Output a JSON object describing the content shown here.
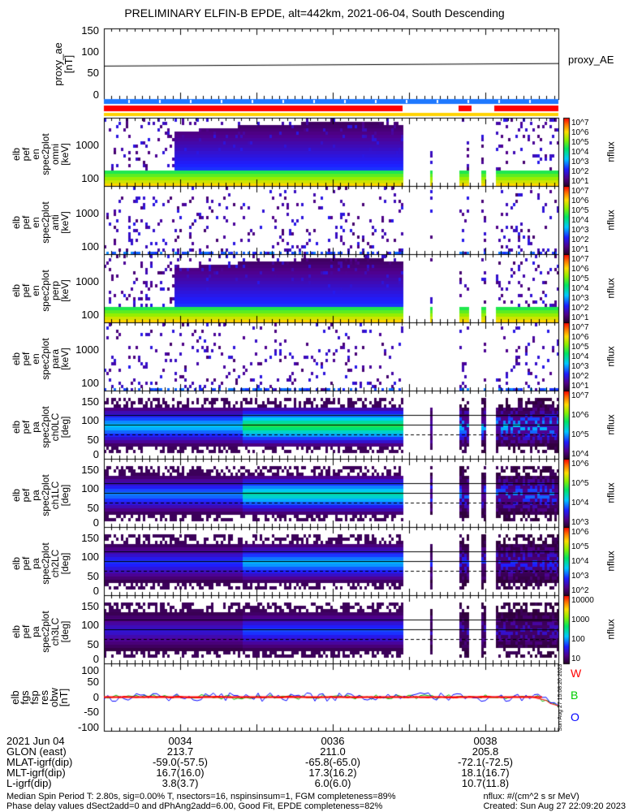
{
  "title": "PRELIMINARY ELFIN-B EPDE, alt=442km, 2021-06-04, South Descending",
  "colors": {
    "red_bar": "#ff0000",
    "blue_bar": "#1e78ff",
    "yellow_bar": "#ffd200",
    "W": "#ff0000",
    "B": "#00dd00",
    "O": "#0000ff"
  },
  "chart_data": [
    {
      "type": "line",
      "name": "proxy_ae",
      "ylabel": "proxy_ae [nT]",
      "yticks": [
        "150",
        "100",
        "50",
        "0"
      ],
      "ylim": [
        -10,
        155
      ],
      "x": [
        "00:33",
        "00:39"
      ],
      "values": [
        67,
        73
      ],
      "legend": "proxy_AE"
    },
    {
      "type": "heatmap",
      "ylabel": [
        "elb",
        "pef",
        "en",
        "spec2plot",
        "omni",
        "[keV]"
      ],
      "yticks": [
        "1000",
        "100"
      ],
      "yscale": "log",
      "ylim": [
        60,
        7000
      ],
      "zlabel": "nflux",
      "zticks": [
        "10^7",
        "10^6",
        "10^5",
        "10^4",
        "10^3",
        "10^2",
        "10^1"
      ]
    },
    {
      "type": "heatmap",
      "ylabel": [
        "elb",
        "pef",
        "en",
        "spec2plot",
        "anti",
        "[keV]"
      ],
      "yticks": [
        "1000",
        "100"
      ],
      "yscale": "log",
      "ylim": [
        60,
        7000
      ],
      "zlabel": "nflux",
      "zticks": [
        "10^7",
        "10^6",
        "10^5",
        "10^4",
        "10^3",
        "10^2",
        "10^1"
      ]
    },
    {
      "type": "heatmap",
      "ylabel": [
        "elb",
        "pef",
        "en",
        "spec2plot",
        "perp",
        "[keV]"
      ],
      "yticks": [
        "1000",
        "100"
      ],
      "yscale": "log",
      "ylim": [
        60,
        7000
      ],
      "zlabel": "nflux",
      "zticks": [
        "10^7",
        "10^6",
        "10^5",
        "10^4",
        "10^3",
        "10^2",
        "10^1"
      ]
    },
    {
      "type": "heatmap",
      "ylabel": [
        "elb",
        "pef",
        "en",
        "spec2plot",
        "para",
        "[keV]"
      ],
      "yticks": [
        "1000",
        "100"
      ],
      "yscale": "log",
      "ylim": [
        60,
        7000
      ],
      "zlabel": "nflux",
      "zticks": [
        "10^7",
        "10^6",
        "10^5",
        "10^4",
        "10^3",
        "10^2",
        "10^1"
      ]
    },
    {
      "type": "heatmap",
      "ylabel": [
        "elb",
        "pef",
        "pa",
        "spec2plot",
        "ch0LC",
        "[deg]"
      ],
      "yticks": [
        "150",
        "100",
        "50",
        "0"
      ],
      "ylim": [
        0,
        180
      ],
      "zlabel": "nflux",
      "zticks": [
        "10^7",
        "10^6",
        "10^5",
        "10^4"
      ]
    },
    {
      "type": "heatmap",
      "ylabel": [
        "elb",
        "pef",
        "pa",
        "spec2plot",
        "ch1LC",
        "[deg]"
      ],
      "yticks": [
        "150",
        "100",
        "50",
        "0"
      ],
      "ylim": [
        0,
        180
      ],
      "zlabel": "nflux",
      "zticks": [
        "10^6",
        "10^5",
        "10^4",
        "10^3"
      ]
    },
    {
      "type": "heatmap",
      "ylabel": [
        "elb",
        "pef",
        "pa",
        "spec2plot",
        "ch2LC",
        "[deg]"
      ],
      "yticks": [
        "150",
        "100",
        "50",
        "0"
      ],
      "ylim": [
        0,
        180
      ],
      "zlabel": "nflux",
      "zticks": [
        "10^6",
        "10^5",
        "10^4",
        "10^3",
        "10^2"
      ]
    },
    {
      "type": "heatmap",
      "ylabel": [
        "elb",
        "pef",
        "pa",
        "spec2plot",
        "ch3LC",
        "[deg]"
      ],
      "yticks": [
        "150",
        "100",
        "50",
        "0"
      ],
      "ylim": [
        0,
        180
      ],
      "zlabel": "nflux",
      "zticks": [
        "10000",
        "1000",
        "100",
        "10"
      ]
    },
    {
      "type": "line",
      "name": "fgs",
      "ylabel": [
        "elb",
        "fgs",
        "fsp",
        "res",
        "obw",
        "[nT]"
      ],
      "yticks": [
        "100",
        "50",
        "0",
        "-50",
        "-100"
      ],
      "ylim": [
        -110,
        110
      ],
      "legend_entries": [
        "W",
        "B",
        "O"
      ],
      "legend": "right"
    }
  ],
  "side_stamp": "Sun Aug 27 15:08:20 2023",
  "footer": {
    "row_labels": [
      "2021 Jun 04",
      "GLON (east)",
      "MLAT-igrf(dip)",
      "MLT-igrf(dip)",
      "L-igrf(dip)"
    ],
    "columns": [
      [
        "0034",
        "213.7",
        "-59.0(-57.5)",
        "16.7(16.0)",
        "3.8(3.7)"
      ],
      [
        "0036",
        "211.0",
        "-65.8(-65.0)",
        "17.3(16.2)",
        "6.0(6.0)"
      ],
      [
        "0038",
        "205.8",
        "-72.1(-72.5)",
        "18.1(16.7)",
        "10.7(11.8)"
      ]
    ],
    "note1": "Median Spin Period T: 2.80s, sig=0.00% T, nsectors=16, nspinsinsum=1, FGM completeness=89%",
    "note2": "Phase delay values dSect2add=0 and dPhAng2add=6.00, Good Fit, EPDE completeness=82%",
    "units": "nflux: #/(cm^2 s sr MeV)",
    "created": "Created: Sun Aug 27 22:09:20 2023"
  }
}
